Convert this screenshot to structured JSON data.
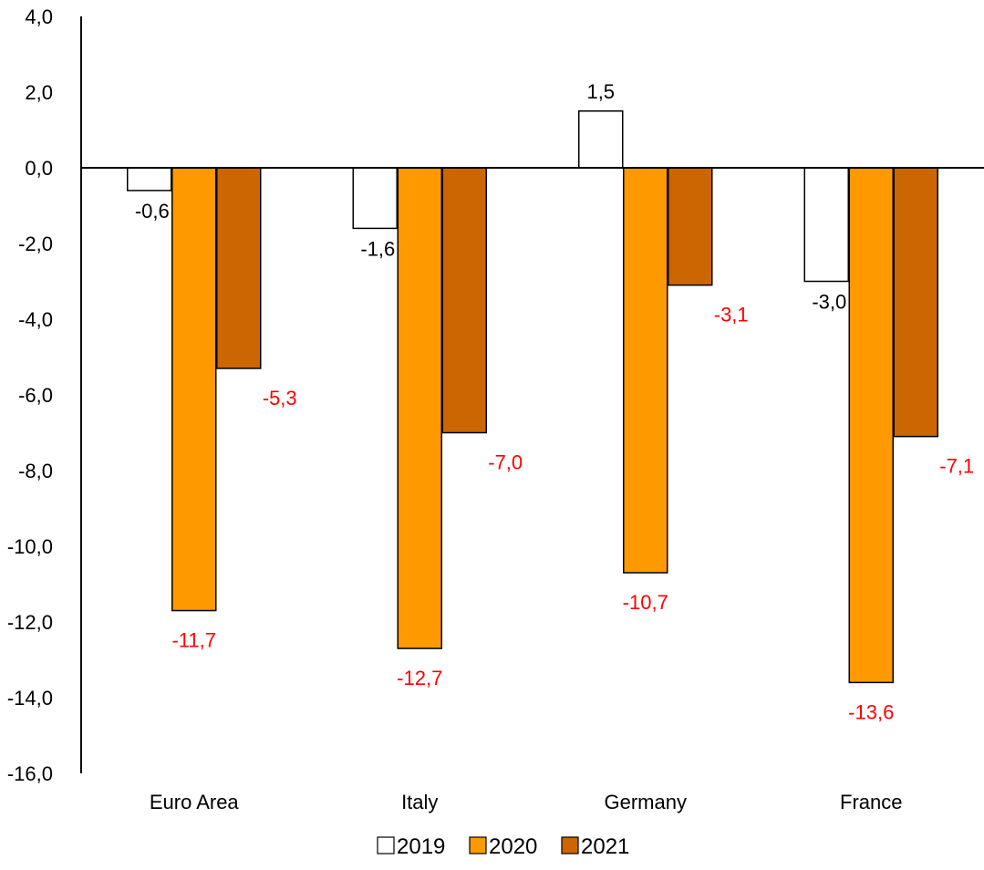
{
  "chart_data": {
    "type": "bar",
    "title": "",
    "xlabel": "",
    "ylabel": "",
    "categories": [
      "Euro Area",
      "Italy",
      "Germany",
      "France"
    ],
    "ylim": [
      -16,
      4
    ],
    "ytick_step": 2,
    "ytick_labels": [
      "4,0",
      "2,0",
      "0,0",
      "-2,0",
      "-4,0",
      "-6,0",
      "-8,0",
      "-10,0",
      "-12,0",
      "-14,0",
      "-16,0"
    ],
    "grid": false,
    "legend_position": "bottom",
    "series": [
      {
        "name": "2019",
        "color": "#ffffff",
        "label_color": "#000000",
        "values": [
          -0.6,
          -1.6,
          1.5,
          -3.0
        ],
        "labels": [
          "-0,6",
          "-1,6",
          "1,5",
          "-3,0"
        ]
      },
      {
        "name": "2020",
        "color": "#ff9900",
        "label_color": "#ff0000",
        "values": [
          -11.7,
          -12.7,
          -10.7,
          -13.6
        ],
        "labels": [
          "-11,7",
          "-12,7",
          "-10,7",
          "-13,6"
        ]
      },
      {
        "name": "2021",
        "color": "#cc6600",
        "label_color": "#ff0000",
        "values": [
          -5.3,
          -7.0,
          -3.1,
          -7.1
        ],
        "labels": [
          "-5,3",
          "-7,0",
          "-3,1",
          "-7,1"
        ]
      }
    ]
  }
}
